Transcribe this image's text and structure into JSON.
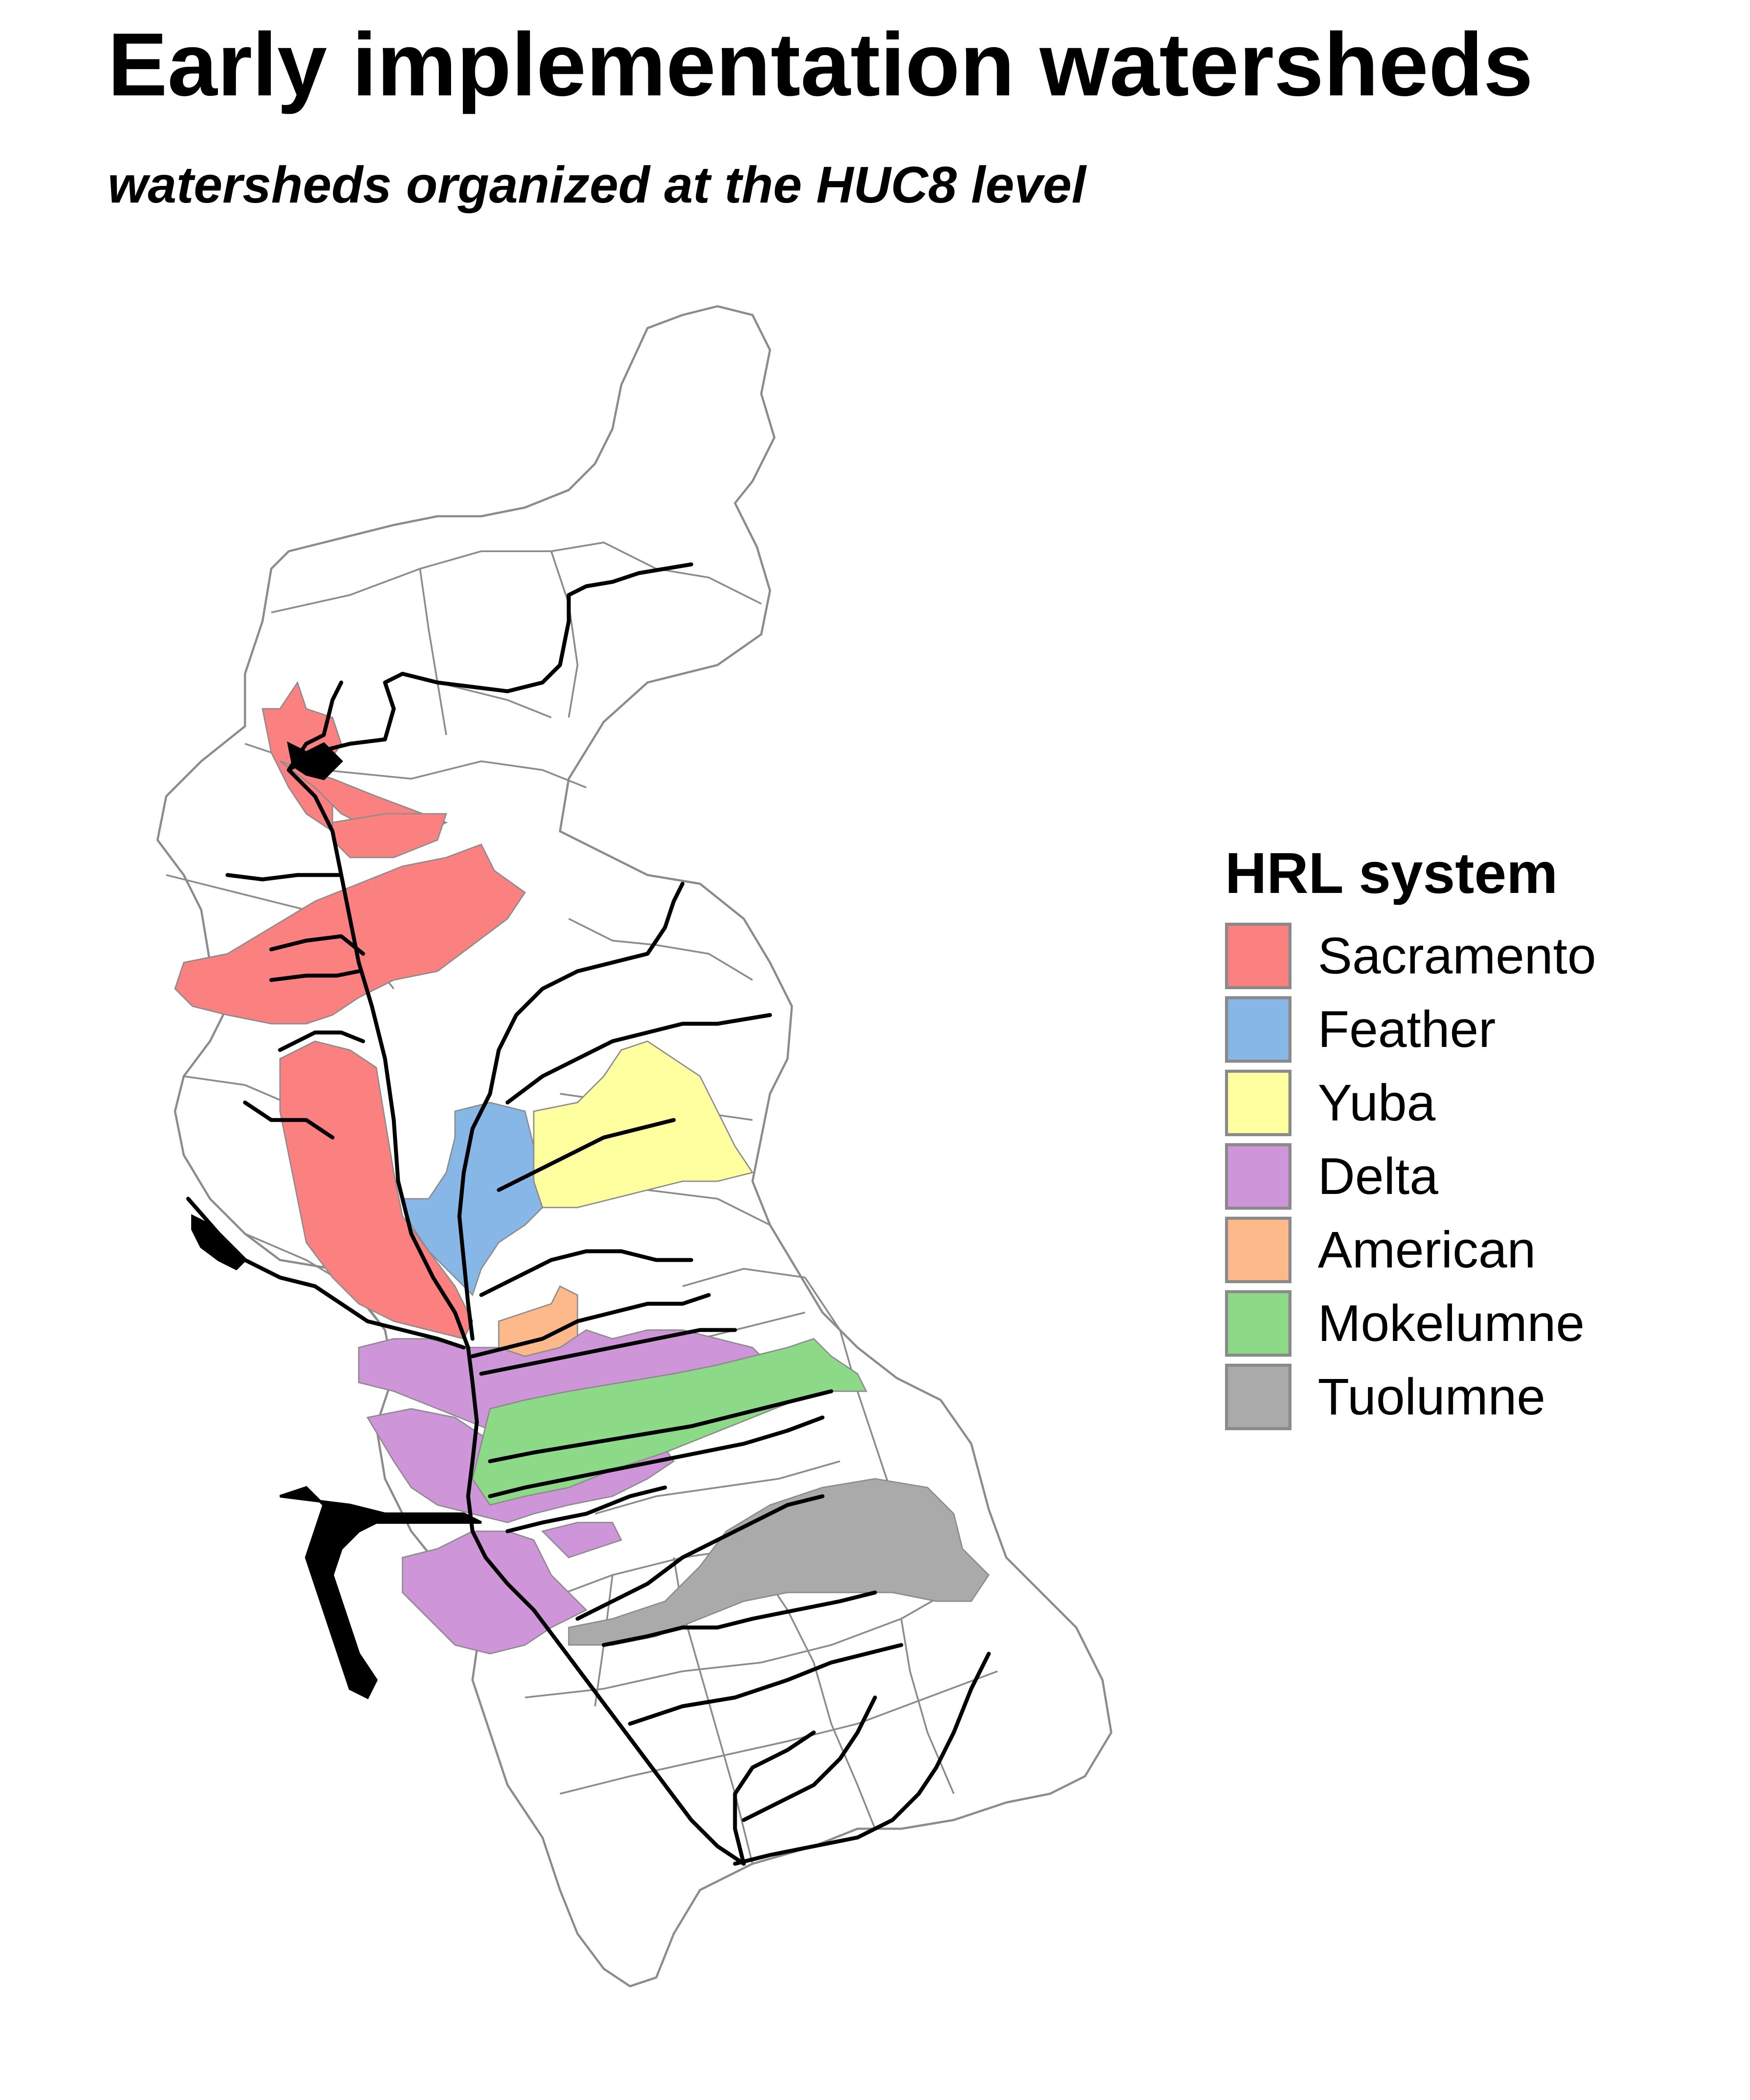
{
  "title": "Early implementation watersheds",
  "subtitle": "watersheds organized at the HUC8 level",
  "legend": {
    "title": "HRL system",
    "items": [
      {
        "label": "Sacramento",
        "color": "#fb8080"
      },
      {
        "label": "Feather",
        "color": "#86b7e6"
      },
      {
        "label": "Yuba",
        "color": "#feff9f"
      },
      {
        "label": "Delta",
        "color": "#cf95d9"
      },
      {
        "label": "American",
        "color": "#fdb98a"
      },
      {
        "label": "Mokelumne",
        "color": "#8cd987"
      },
      {
        "label": "Tuolumne",
        "color": "#aaaaaa"
      }
    ]
  },
  "map_style": {
    "boundary_color": "#8c8c8c",
    "river_color": "#000000",
    "background": "#ffffff"
  }
}
